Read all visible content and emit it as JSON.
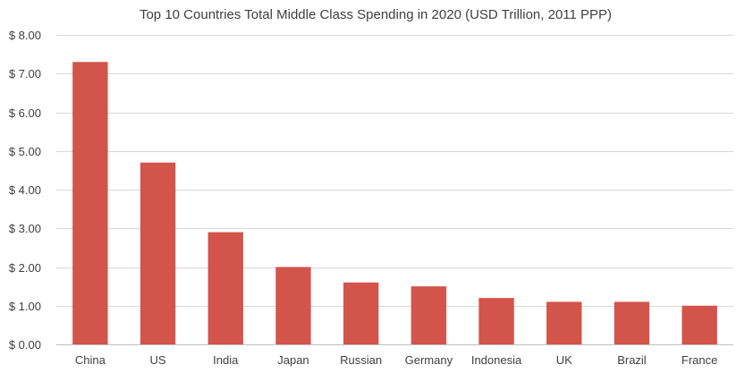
{
  "chart_data": {
    "type": "bar",
    "title": "Top 10 Countries Total Middle Class Spending in 2020 (USD Trillion, 2011 PPP)",
    "categories": [
      "China",
      "US",
      "India",
      "Japan",
      "Russian",
      "Germany",
      "Indonesia",
      "UK",
      "Brazil",
      "France"
    ],
    "values": [
      7.3,
      4.7,
      2.9,
      2.0,
      1.6,
      1.5,
      1.2,
      1.1,
      1.1,
      1.0
    ],
    "ylim": [
      0,
      8
    ],
    "yticks": [
      0,
      1,
      2,
      3,
      4,
      5,
      6,
      7,
      8
    ],
    "ytick_labels": [
      "$ 0.00",
      "$ 1.00",
      "$ 2.00",
      "$ 3.00",
      "$ 4.00",
      "$ 5.00",
      "$ 6.00",
      "$ 7.00",
      "$ 8.00"
    ],
    "grid": true,
    "legend": "none",
    "bar_color": "#d3544a"
  }
}
